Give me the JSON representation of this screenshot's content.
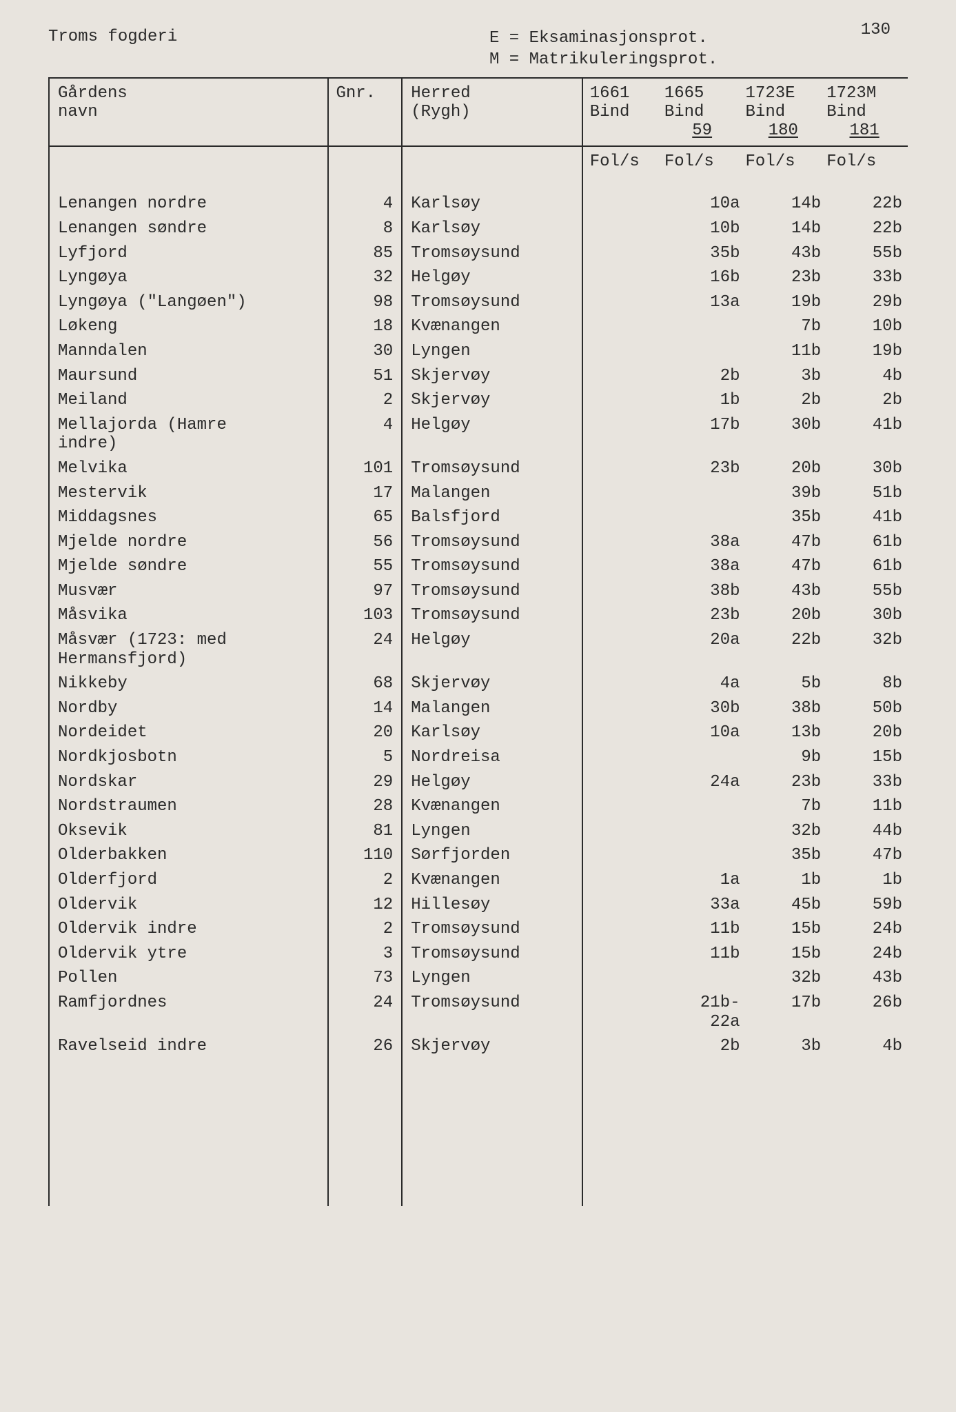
{
  "page_number": "130",
  "title": "Troms fogderi",
  "legend": {
    "line1": "E = Eksaminasjonsprot.",
    "line2": "M = Matrikuleringsprot."
  },
  "columns": {
    "name": {
      "line1": "Gårdens",
      "line2": "navn"
    },
    "gnr": {
      "line1": "Gnr."
    },
    "herred": {
      "line1": "Herred",
      "line2": "(Rygh)"
    },
    "y1": {
      "line1": "1661",
      "line2": "Bind",
      "line3": ""
    },
    "y2": {
      "line1": "1665",
      "line2": "Bind",
      "line3": "59"
    },
    "y3": {
      "line1": "1723E",
      "line2": "Bind",
      "line3": "180"
    },
    "y4": {
      "line1": "1723M",
      "line2": "Bind",
      "line3": "181"
    }
  },
  "fols_label": "Fol/s",
  "rows": [
    {
      "name": "Lenangen nordre",
      "gnr": "4",
      "herred": "Karlsøy",
      "y1": "",
      "y2": "10a",
      "y3": "14b",
      "y4": "22b"
    },
    {
      "name": "Lenangen søndre",
      "gnr": "8",
      "herred": "Karlsøy",
      "y1": "",
      "y2": "10b",
      "y3": "14b",
      "y4": "22b"
    },
    {
      "name": "Lyfjord",
      "gnr": "85",
      "herred": "Tromsøysund",
      "y1": "",
      "y2": "35b",
      "y3": "43b",
      "y4": "55b"
    },
    {
      "name": "Lyngøya",
      "gnr": "32",
      "herred": "Helgøy",
      "y1": "",
      "y2": "16b",
      "y3": "23b",
      "y4": "33b"
    },
    {
      "name": "Lyngøya (\"Langøen\")",
      "gnr": "98",
      "herred": "Tromsøysund",
      "y1": "",
      "y2": "13a",
      "y3": "19b",
      "y4": "29b"
    },
    {
      "name": "Løkeng",
      "gnr": "18",
      "herred": "Kvænangen",
      "y1": "",
      "y2": "",
      "y3": "7b",
      "y4": "10b"
    },
    {
      "name": "Manndalen",
      "gnr": "30",
      "herred": "Lyngen",
      "y1": "",
      "y2": "",
      "y3": "11b",
      "y4": "19b"
    },
    {
      "name": "Maursund",
      "gnr": "51",
      "herred": "Skjervøy",
      "y1": "",
      "y2": "2b",
      "y3": "3b",
      "y4": "4b"
    },
    {
      "name": "Meiland",
      "gnr": "2",
      "herred": "Skjervøy",
      "y1": "",
      "y2": "1b",
      "y3": "2b",
      "y4": "2b"
    },
    {
      "name": "Mellajorda (Hamre\nindre)",
      "gnr": "4",
      "herred": "Helgøy",
      "y1": "",
      "y2": "17b",
      "y3": "30b",
      "y4": "41b"
    },
    {
      "name": "Melvika",
      "gnr": "101",
      "herred": "Tromsøysund",
      "y1": "",
      "y2": "23b",
      "y3": "20b",
      "y4": "30b"
    },
    {
      "name": "Mestervik",
      "gnr": "17",
      "herred": "Malangen",
      "y1": "",
      "y2": "",
      "y3": "39b",
      "y4": "51b"
    },
    {
      "name": "Middagsnes",
      "gnr": "65",
      "herred": "Balsfjord",
      "y1": "",
      "y2": "",
      "y3": "35b",
      "y4": "41b"
    },
    {
      "name": "Mjelde nordre",
      "gnr": "56",
      "herred": "Tromsøysund",
      "y1": "",
      "y2": "38a",
      "y3": "47b",
      "y4": "61b"
    },
    {
      "name": "Mjelde søndre",
      "gnr": "55",
      "herred": "Tromsøysund",
      "y1": "",
      "y2": "38a",
      "y3": "47b",
      "y4": "61b"
    },
    {
      "name": "Musvær",
      "gnr": "97",
      "herred": "Tromsøysund",
      "y1": "",
      "y2": "38b",
      "y3": "43b",
      "y4": "55b"
    },
    {
      "name": "Måsvika",
      "gnr": "103",
      "herred": "Tromsøysund",
      "y1": "",
      "y2": "23b",
      "y3": "20b",
      "y4": "30b"
    },
    {
      "name": "Måsvær (1723: med\nHermansfjord)",
      "gnr": "24",
      "herred": "Helgøy",
      "y1": "",
      "y2": "20a",
      "y3": "22b",
      "y4": "32b"
    },
    {
      "name": "Nikkeby",
      "gnr": "68",
      "herred": "Skjervøy",
      "y1": "",
      "y2": "4a",
      "y3": "5b",
      "y4": "8b"
    },
    {
      "name": "Nordby",
      "gnr": "14",
      "herred": "Malangen",
      "y1": "",
      "y2": "30b",
      "y3": "38b",
      "y4": "50b"
    },
    {
      "name": "Nordeidet",
      "gnr": "20",
      "herred": "Karlsøy",
      "y1": "",
      "y2": "10a",
      "y3": "13b",
      "y4": "20b"
    },
    {
      "name": "Nordkjosbotn",
      "gnr": "5",
      "herred": "Nordreisa",
      "y1": "",
      "y2": "",
      "y3": "9b",
      "y4": "15b"
    },
    {
      "name": "Nordskar",
      "gnr": "29",
      "herred": "Helgøy",
      "y1": "",
      "y2": "24a",
      "y3": "23b",
      "y4": "33b"
    },
    {
      "name": "Nordstraumen",
      "gnr": "28",
      "herred": "Kvænangen",
      "y1": "",
      "y2": "",
      "y3": "7b",
      "y4": "11b"
    },
    {
      "name": "Oksevik",
      "gnr": "81",
      "herred": "Lyngen",
      "y1": "",
      "y2": "",
      "y3": "32b",
      "y4": "44b"
    },
    {
      "name": "Olderbakken",
      "gnr": "110",
      "herred": "Sørfjorden",
      "y1": "",
      "y2": "",
      "y3": "35b",
      "y4": "47b"
    },
    {
      "name": "Olderfjord",
      "gnr": "2",
      "herred": "Kvænangen",
      "y1": "",
      "y2": "1a",
      "y3": "1b",
      "y4": "1b"
    },
    {
      "name": "Oldervik",
      "gnr": "12",
      "herred": "Hillesøy",
      "y1": "",
      "y2": "33a",
      "y3": "45b",
      "y4": "59b"
    },
    {
      "name": "Oldervik indre",
      "gnr": "2",
      "herred": "Tromsøysund",
      "y1": "",
      "y2": "11b",
      "y3": "15b",
      "y4": "24b"
    },
    {
      "name": "Oldervik ytre",
      "gnr": "3",
      "herred": "Tromsøysund",
      "y1": "",
      "y2": "11b",
      "y3": "15b",
      "y4": "24b"
    },
    {
      "name": "Pollen",
      "gnr": "73",
      "herred": "Lyngen",
      "y1": "",
      "y2": "",
      "y3": "32b",
      "y4": "43b"
    },
    {
      "name": "Ramfjordnes",
      "gnr": "24",
      "herred": "Tromsøysund",
      "y1": "",
      "y2": "21b-\n22a",
      "y3": "17b",
      "y4": "26b"
    },
    {
      "name": "Ravelseid indre",
      "gnr": "26",
      "herred": "Skjervøy",
      "y1": "",
      "y2": "2b",
      "y3": "3b",
      "y4": "4b"
    }
  ],
  "style": {
    "background_color": "#e8e4de",
    "text_color": "#2a2a2a",
    "border_color": "#2a2a2a",
    "font_family": "Courier New",
    "font_size_pt": 18
  }
}
